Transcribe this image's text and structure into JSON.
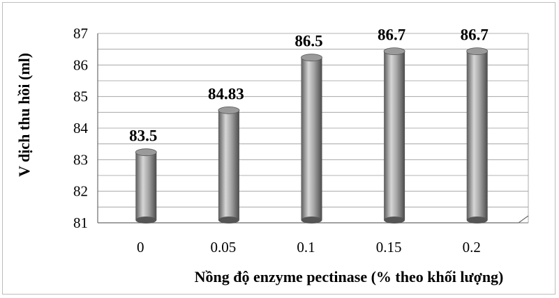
{
  "chart_data": {
    "type": "bar",
    "style": "3d-cylinder",
    "categories": [
      "0",
      "0.05",
      "0.1",
      "0.15",
      "0.2"
    ],
    "values": [
      83.5,
      84.83,
      86.5,
      86.7,
      86.7
    ],
    "data_labels": [
      "83.5",
      "84.83",
      "86.5",
      "86.7",
      "86.7"
    ],
    "xlabel": "Nồng độ enzyme pectinase (% theo khối lượng)",
    "ylabel": "V dịch thu hồi (ml)",
    "ylim": [
      81,
      87
    ],
    "yticks": [
      "81",
      "82",
      "83",
      "84",
      "85",
      "86",
      "87"
    ],
    "grid": true,
    "legend": "none",
    "colors": {
      "bar_light": "#d9d9d9",
      "bar_dark": "#6e6e6e",
      "grid": "#9a9a9a",
      "axis": "#6b6b6b"
    }
  }
}
